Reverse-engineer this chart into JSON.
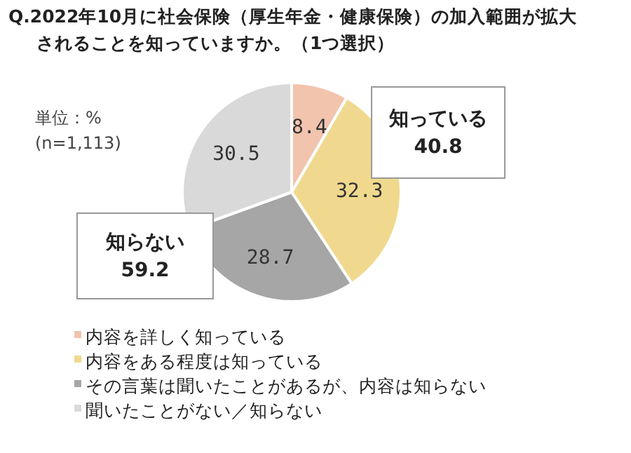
{
  "chart_data": {
    "type": "pie",
    "title": "Q.2022年10月に社会保険（厚生年金・健康保険）の加入範囲が拡大されることを知っていますか。（1つ選択）",
    "categories": [
      "内容を詳しく知っている",
      "内容をある程度は知っている",
      "その言葉は聞いたことがあるが、内容は知らない",
      "聞いたことがない／知らない"
    ],
    "values": [
      8.4,
      32.3,
      28.7,
      30.5
    ],
    "colors": [
      "#f2c4ae",
      "#f0d98e",
      "#a6a6a6",
      "#d9d9d9"
    ],
    "data_labels": true,
    "legend": "bottom",
    "annotations": [
      "単位：%",
      "(n=1,113)",
      "知っている\n40.8",
      "知らない\n59.2"
    ]
  }
}
